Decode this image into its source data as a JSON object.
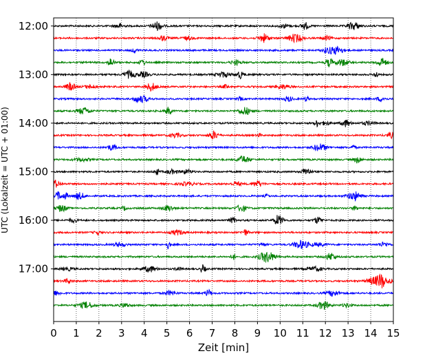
{
  "chart_data": {
    "type": "line",
    "title": "",
    "xlabel": "Zeit  [min]",
    "ylabel": "UTC (Lokalzeit = UTC + 01:00)",
    "xlim": [
      0,
      15
    ],
    "x_ticks": [
      0,
      1,
      2,
      3,
      4,
      5,
      6,
      7,
      8,
      9,
      10,
      11,
      12,
      13,
      14,
      15
    ],
    "x_tick_labels": [
      "0",
      "1",
      "2",
      "3",
      "4",
      "5",
      "6",
      "7",
      "8",
      "9",
      "10",
      "11",
      "12",
      "13",
      "14",
      "15"
    ],
    "y_ticks": [
      "12:00",
      "13:00",
      "14:00",
      "15:00",
      "16:00",
      "17:00"
    ],
    "y_tick_labels": [
      "12:00",
      "13:00",
      "14:00",
      "15:00",
      "16:00",
      "17:00"
    ],
    "ylim": [
      "11:50",
      "18:05"
    ],
    "grid": "vertical dotted lines at each minute",
    "trace_interval_minutes": 15,
    "trace_colors": [
      "#000000",
      "#ff0000",
      "#0000ff",
      "#008000"
    ],
    "traces": [
      {
        "start": "12:00",
        "color": "#000000"
      },
      {
        "start": "12:15",
        "color": "#ff0000"
      },
      {
        "start": "12:30",
        "color": "#0000ff"
      },
      {
        "start": "12:45",
        "color": "#008000"
      },
      {
        "start": "13:00",
        "color": "#000000"
      },
      {
        "start": "13:15",
        "color": "#ff0000"
      },
      {
        "start": "13:30",
        "color": "#0000ff"
      },
      {
        "start": "13:45",
        "color": "#008000"
      },
      {
        "start": "14:00",
        "color": "#000000"
      },
      {
        "start": "14:15",
        "color": "#ff0000"
      },
      {
        "start": "14:30",
        "color": "#0000ff"
      },
      {
        "start": "14:45",
        "color": "#008000"
      },
      {
        "start": "15:00",
        "color": "#000000"
      },
      {
        "start": "15:15",
        "color": "#ff0000"
      },
      {
        "start": "15:30",
        "color": "#0000ff"
      },
      {
        "start": "15:45",
        "color": "#008000"
      },
      {
        "start": "16:00",
        "color": "#000000"
      },
      {
        "start": "16:15",
        "color": "#ff0000"
      },
      {
        "start": "16:30",
        "color": "#0000ff"
      },
      {
        "start": "16:45",
        "color": "#008000"
      },
      {
        "start": "17:00",
        "color": "#000000"
      },
      {
        "start": "17:15",
        "color": "#ff0000"
      },
      {
        "start": "17:30",
        "color": "#0000ff"
      },
      {
        "start": "17:45",
        "color": "#008000"
      }
    ]
  }
}
